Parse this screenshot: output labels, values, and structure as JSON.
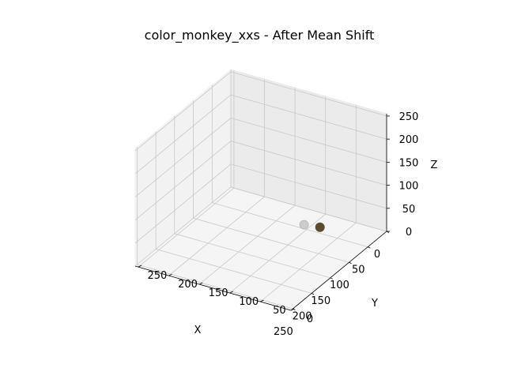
{
  "chart_data": {
    "type": "scatter",
    "projection": "3d",
    "title": "color_monkey_xxs - After Mean Shift",
    "xlabel": "X",
    "ylabel": "Y",
    "zlabel": "Z",
    "xlim": [
      0,
      255
    ],
    "ylim": [
      0,
      255
    ],
    "zlim": [
      0,
      255
    ],
    "xticks": [
      "0",
      "50",
      "100",
      "150",
      "200",
      "250"
    ],
    "yticks": [
      "0",
      "50",
      "100",
      "150",
      "200",
      "250"
    ],
    "zticks": [
      "0",
      "50",
      "100",
      "150",
      "200",
      "250"
    ],
    "grid": true,
    "points": [
      {
        "x": 98,
        "y": 75,
        "z": 52,
        "color": "#bdbdb8"
      },
      {
        "x": 80,
        "y": 60,
        "z": 40,
        "color": "#5c4b33"
      }
    ]
  }
}
